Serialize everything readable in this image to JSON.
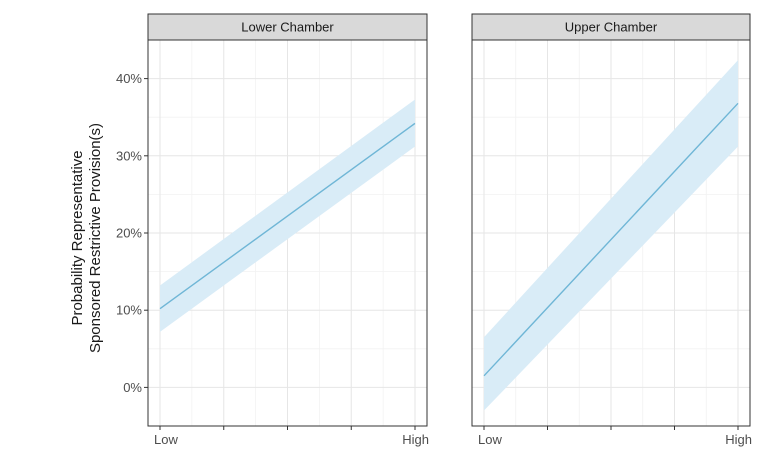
{
  "chart_data": {
    "type": "line",
    "ylabel_lines": [
      "Probability Representative",
      "Sponsored Restrictive Provision(s)"
    ],
    "ylim": [
      -0.05,
      0.45
    ],
    "yticks": [
      0,
      0.1,
      0.2,
      0.3,
      0.4
    ],
    "ytick_labels": [
      "0%",
      "10%",
      "20%",
      "30%",
      "40%"
    ],
    "x_tick_labels": [
      "Low",
      "High"
    ],
    "x_tick_count": 5,
    "grid": true,
    "panels": [
      {
        "name": "Lower Chamber",
        "x": [
          0,
          1
        ],
        "y": [
          0.102,
          0.342
        ],
        "lower": [
          0.072,
          0.312
        ],
        "upper": [
          0.132,
          0.373
        ],
        "band_color": "#d9ecf7",
        "line_color": "#6fb6d6"
      },
      {
        "name": "Upper Chamber",
        "x": [
          0,
          1
        ],
        "y": [
          0.015,
          0.368
        ],
        "lower": [
          -0.03,
          0.312
        ],
        "upper": [
          0.065,
          0.424
        ],
        "band_color": "#d9ecf7",
        "line_color": "#6fb6d6"
      }
    ]
  }
}
